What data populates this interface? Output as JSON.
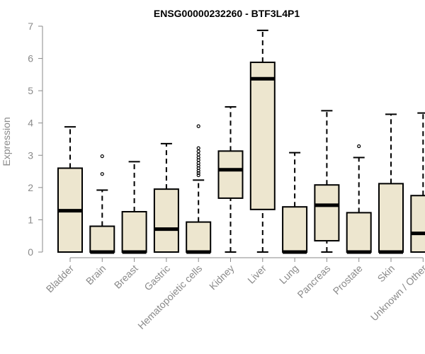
{
  "chart_data": {
    "type": "box",
    "title": "ENSG00000232260 - BTF3L4P1",
    "ylabel": "Expression",
    "xlabel": "",
    "ylim": [
      0,
      7
    ],
    "yticks": [
      0,
      1,
      2,
      3,
      4,
      5,
      6,
      7
    ],
    "grid": false,
    "legend": "none",
    "colors": {
      "box_fill": "#ede6cf",
      "stroke": "#000000",
      "axis_text": "#8a8a8a"
    },
    "categories": [
      "Bladder",
      "Brain",
      "Breast",
      "Gastric",
      "Hematopoietic cells",
      "Kidney",
      "Liver",
      "Lung",
      "Pancreas",
      "Prostate",
      "Skin",
      "Unknown / Other"
    ],
    "boxes": [
      {
        "category": "Bladder",
        "min": 0,
        "q1": 0,
        "median": 1.28,
        "q3": 2.6,
        "max": 3.88,
        "outliers": []
      },
      {
        "category": "Brain",
        "min": 0,
        "q1": 0,
        "median": 0,
        "q3": 0.8,
        "max": 1.92,
        "outliers": [
          2.42,
          2.97
        ]
      },
      {
        "category": "Breast",
        "min": 0,
        "q1": 0,
        "median": 0,
        "q3": 1.25,
        "max": 2.8,
        "outliers": []
      },
      {
        "category": "Gastric",
        "min": 0,
        "q1": 0,
        "median": 0.71,
        "q3": 1.95,
        "max": 3.36,
        "outliers": []
      },
      {
        "category": "Hematopoietic cells",
        "min": 0,
        "q1": 0,
        "median": 0,
        "q3": 0.93,
        "max": 2.23,
        "outliers": [
          2.38,
          2.45,
          2.52,
          2.6,
          2.68,
          2.76,
          2.85,
          2.93,
          3.02,
          3.12,
          3.22,
          3.9
        ]
      },
      {
        "category": "Kidney",
        "min": 0,
        "q1": 1.67,
        "median": 2.55,
        "q3": 3.13,
        "max": 4.5,
        "outliers": []
      },
      {
        "category": "Liver",
        "min": 0,
        "q1": 1.32,
        "median": 5.37,
        "q3": 5.88,
        "max": 6.87,
        "outliers": []
      },
      {
        "category": "Lung",
        "min": 0,
        "q1": 0,
        "median": 0,
        "q3": 1.4,
        "max": 3.08,
        "outliers": []
      },
      {
        "category": "Pancreas",
        "min": 0,
        "q1": 0.35,
        "median": 1.45,
        "q3": 2.08,
        "max": 4.38,
        "outliers": []
      },
      {
        "category": "Prostate",
        "min": 0,
        "q1": 0,
        "median": 0,
        "q3": 1.22,
        "max": 2.93,
        "outliers": [
          3.28
        ]
      },
      {
        "category": "Skin",
        "min": 0,
        "q1": 0,
        "median": 0,
        "q3": 2.12,
        "max": 4.27,
        "outliers": []
      },
      {
        "category": "Unknown / Other",
        "min": 0,
        "q1": 0,
        "median": 0.58,
        "q3": 1.75,
        "max": 4.31,
        "outliers": []
      }
    ]
  }
}
